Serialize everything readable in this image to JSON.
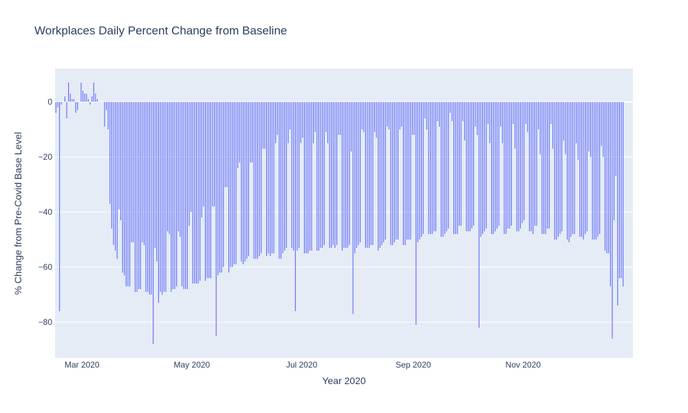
{
  "chart_data": {
    "type": "bar",
    "title": "Workplaces Daily Percent Change from Baseline",
    "xlabel": "Year 2020",
    "ylabel": "% Change from Pre-Covid Base Level",
    "x_start": "2020-02-15",
    "x_range": [
      "2020-02-15",
      "2020-12-31"
    ],
    "ylim": [
      -93,
      12
    ],
    "y_ticks": [
      0,
      -20,
      -40,
      -60,
      -80
    ],
    "x_ticks": [
      {
        "date": "2020-03-01",
        "label": "Mar 2020"
      },
      {
        "date": "2020-05-01",
        "label": "May 2020"
      },
      {
        "date": "2020-07-01",
        "label": "Jul 2020"
      },
      {
        "date": "2020-09-01",
        "label": "Sep 2020"
      },
      {
        "date": "2020-11-01",
        "label": "Nov 2020"
      }
    ],
    "grid": true,
    "bar_color": "#636efa",
    "plot_bg": "#e5ecf6",
    "values": [
      -4,
      -2,
      -76,
      -1,
      0,
      2,
      -6,
      7,
      3,
      1,
      1,
      -4,
      -3,
      0,
      7,
      4,
      3,
      3,
      1,
      -1,
      2,
      7,
      3,
      1,
      0,
      0,
      0,
      -9,
      -3,
      -10,
      -37,
      -46,
      -52,
      -54,
      -57,
      -39,
      -43,
      -62,
      -63,
      -67,
      -67,
      -67,
      -51,
      -51,
      -69,
      -69,
      -68,
      -68,
      -51,
      -52,
      -69,
      -69,
      -70,
      -70,
      -88,
      -53,
      -58,
      -73,
      -69,
      -70,
      -69,
      -69,
      -47,
      -48,
      -69,
      -68,
      -68,
      -67,
      -47,
      -49,
      -67,
      -68,
      -68,
      -68,
      -45,
      -40,
      -66,
      -66,
      -66,
      -66,
      -65,
      -42,
      -38,
      -65,
      -64,
      -64,
      -64,
      -38,
      -38,
      -85,
      -63,
      -62,
      -62,
      -60,
      -31,
      -31,
      -62,
      -60,
      -60,
      -59,
      -59,
      -24,
      -22,
      -58,
      -59,
      -58,
      -57,
      -56,
      -22,
      -22,
      -57,
      -57,
      -57,
      -56,
      -55,
      -17,
      -17,
      -56,
      -55,
      -56,
      -55,
      -55,
      -15,
      -12,
      -57,
      -57,
      -55,
      -54,
      -53,
      -15,
      -10,
      -53,
      -54,
      -76,
      -54,
      -53,
      -15,
      -13,
      -55,
      -55,
      -55,
      -54,
      -54,
      -15,
      -11,
      -54,
      -54,
      -53,
      -53,
      -52,
      -11,
      -15,
      -53,
      -53,
      -52,
      -53,
      -52,
      -12,
      -12,
      -54,
      -53,
      -53,
      -53,
      -52,
      -18,
      -77,
      -55,
      -53,
      -52,
      -51,
      -10,
      -11,
      -53,
      -53,
      -53,
      -52,
      -52,
      -11,
      -13,
      -54,
      -53,
      -52,
      -51,
      -50,
      -9,
      -10,
      -52,
      -52,
      -51,
      -50,
      -50,
      -10,
      -9,
      -52,
      -52,
      -50,
      -50,
      -50,
      -12,
      -12,
      -81,
      -51,
      -50,
      -49,
      -48,
      -6,
      -10,
      -48,
      -48,
      -48,
      -47,
      -47,
      -7,
      -9,
      -49,
      -49,
      -48,
      -47,
      -46,
      -4,
      -7,
      -48,
      -48,
      -48,
      -45,
      -45,
      -7,
      -14,
      -47,
      -47,
      -47,
      -46,
      -45,
      -9,
      -12,
      -82,
      -49,
      -48,
      -47,
      -46,
      -8,
      -15,
      -48,
      -48,
      -47,
      -46,
      -45,
      -9,
      -15,
      -48,
      -48,
      -46,
      -46,
      -45,
      -8,
      -17,
      -47,
      -47,
      -46,
      -44,
      -43,
      -8,
      -11,
      -47,
      -47,
      -48,
      -45,
      -45,
      -10,
      -19,
      -48,
      -48,
      -48,
      -46,
      -46,
      -8,
      -17,
      -50,
      -50,
      -49,
      -48,
      -47,
      -14,
      -19,
      -50,
      -51,
      -49,
      -48,
      -48,
      -15,
      -21,
      -49,
      -49,
      -50,
      -48,
      -47,
      -18,
      -20,
      -50,
      -50,
      -50,
      -49,
      -48,
      -16,
      -20,
      -54,
      -55,
      -55,
      -67,
      -86,
      -43,
      -27,
      -74,
      -64,
      -64,
      -67
    ]
  }
}
